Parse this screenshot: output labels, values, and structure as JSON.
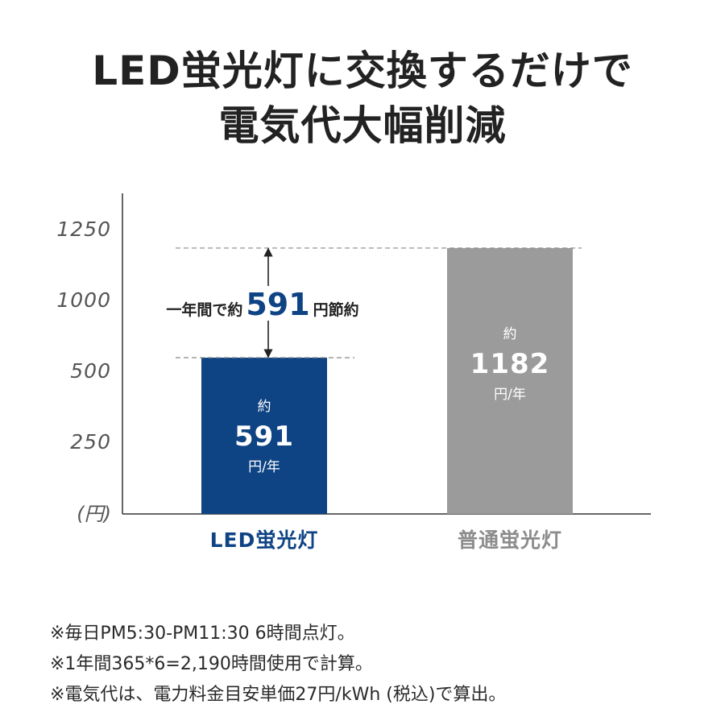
{
  "headline": {
    "line1": "LED蛍光灯に交換するだけで",
    "line2": "電気代大幅削減"
  },
  "colors": {
    "led_bar": "#0e4384",
    "normal_bar": "#9b9b9b",
    "axis": "#333333",
    "ylabel": "#555555",
    "led_label": "#0e4384",
    "normal_label": "#8c8c8c",
    "savings_number": "#0e4384",
    "dash": "#888888"
  },
  "chart_data": {
    "type": "bar",
    "categories": [
      "LED蛍光灯",
      "普通蛍光灯"
    ],
    "values": [
      591,
      1182
    ],
    "ylim": [
      0,
      1350
    ],
    "yticks": [
      250,
      500,
      1000,
      1250
    ],
    "tick_labels": [
      "250",
      "500",
      "1000",
      "1250"
    ],
    "yunit": "(円)",
    "grid": false,
    "bar_labels": [
      {
        "prefix": "約",
        "value": "591",
        "unit": "円/年"
      },
      {
        "prefix": "約",
        "value": "1182",
        "unit": "円/年"
      }
    ],
    "annotation": {
      "before": "一年間で約",
      "value": "591",
      "after": "円節約"
    }
  },
  "notes": [
    "※毎日PM5:30-PM11:30 6時間点灯。",
    "※1年間365*6=2,190時間使用で計算。",
    "※電気代は、電力料金目安単価27円/kWh (税込)で算出。"
  ]
}
